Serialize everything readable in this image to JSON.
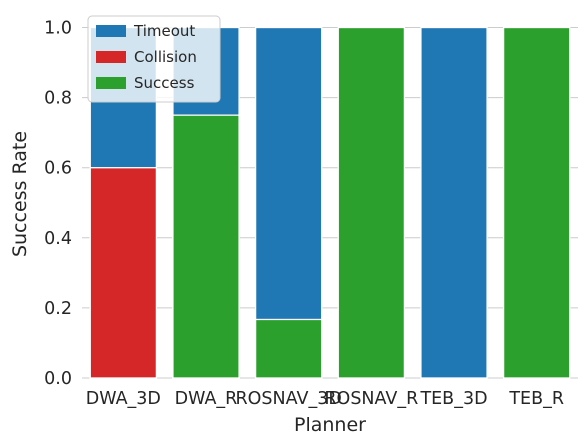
{
  "chart_data": {
    "type": "bar",
    "stacked": true,
    "categories": [
      "DWA_3D",
      "DWA_R",
      "ROSNAV_3D",
      "ROSNAV_R",
      "TEB_3D",
      "TEB_R"
    ],
    "series": [
      {
        "name": "Timeout",
        "color": "#1f77b4",
        "values": [
          0.4,
          0.25,
          0.833,
          0.0,
          1.0,
          0.0
        ]
      },
      {
        "name": "Collision",
        "color": "#d62728",
        "values": [
          0.6,
          0.0,
          0.0,
          0.0,
          0.0,
          0.0
        ]
      },
      {
        "name": "Success",
        "color": "#2ca02c",
        "values": [
          0.0,
          0.75,
          0.167,
          1.0,
          0.0,
          1.0
        ]
      }
    ],
    "draw_order": [
      "Timeout",
      "Collision",
      "Success"
    ],
    "bar_tops": {
      "Timeout": [
        1.0,
        1.0,
        1.0,
        0.0,
        1.0,
        0.0
      ],
      "Collision": [
        0.6,
        0.0,
        0.0,
        0.0,
        0.0,
        0.0
      ],
      "Success": [
        0.0,
        0.75,
        0.167,
        1.0,
        0.0,
        1.0
      ]
    },
    "title": "",
    "xlabel": "Planner",
    "ylabel": "Success Rate",
    "ylim": [
      0,
      1.05
    ],
    "yticks": [
      0.0,
      0.2,
      0.4,
      0.6,
      0.8,
      1.0
    ],
    "ytick_labels": [
      "0.0",
      "0.2",
      "0.4",
      "0.6",
      "0.8",
      "1.0"
    ],
    "grid": true,
    "legend_position": "top-left",
    "background_color": "#ffffff",
    "grid_color": "#cccccc"
  }
}
